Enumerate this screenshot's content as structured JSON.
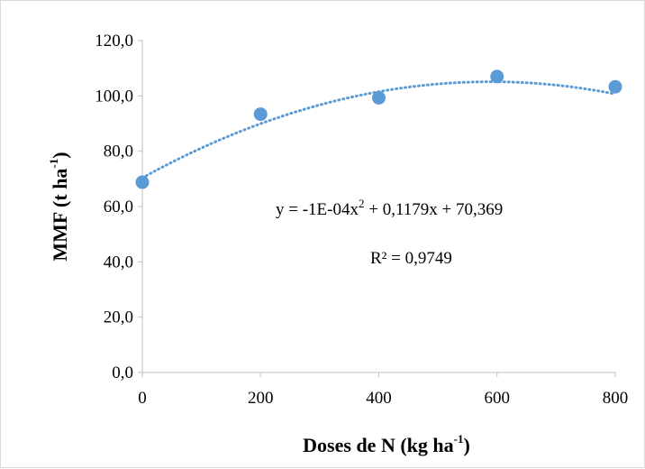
{
  "chart_data": {
    "type": "scatter",
    "x": [
      0,
      200,
      400,
      600,
      800
    ],
    "y": [
      68.8,
      93.4,
      99.3,
      107.0,
      103.3
    ],
    "xlim": [
      0,
      800
    ],
    "ylim": [
      0,
      120
    ],
    "x_ticks": [
      "0",
      "200",
      "400",
      "600",
      "800"
    ],
    "y_ticks": [
      "0,0",
      "20,0",
      "40,0",
      "60,0",
      "80,0",
      "100,0",
      "120,0"
    ],
    "xlabel": {
      "main": "Doses de N (kg ha",
      "sup": "-1",
      "close": ")"
    },
    "ylabel": {
      "main": "MMF (t ha",
      "sup": "-1",
      "close": ")"
    },
    "trendline": {
      "type": "polynomial-2",
      "coefficients": {
        "a": -0.0001,
        "b": 0.1179,
        "c": 70.369
      },
      "style": "dotted"
    },
    "equation": {
      "pre": "y = -1E-04x",
      "sup": "2",
      "post": " + 0,1179x + 70,369"
    },
    "r2_text": "R² = 0,9749",
    "colors": {
      "points": "#5b9bd5",
      "trendline": "#5b9bd5",
      "axis": "#bfbfbf"
    },
    "grid": false,
    "legend": "none"
  }
}
